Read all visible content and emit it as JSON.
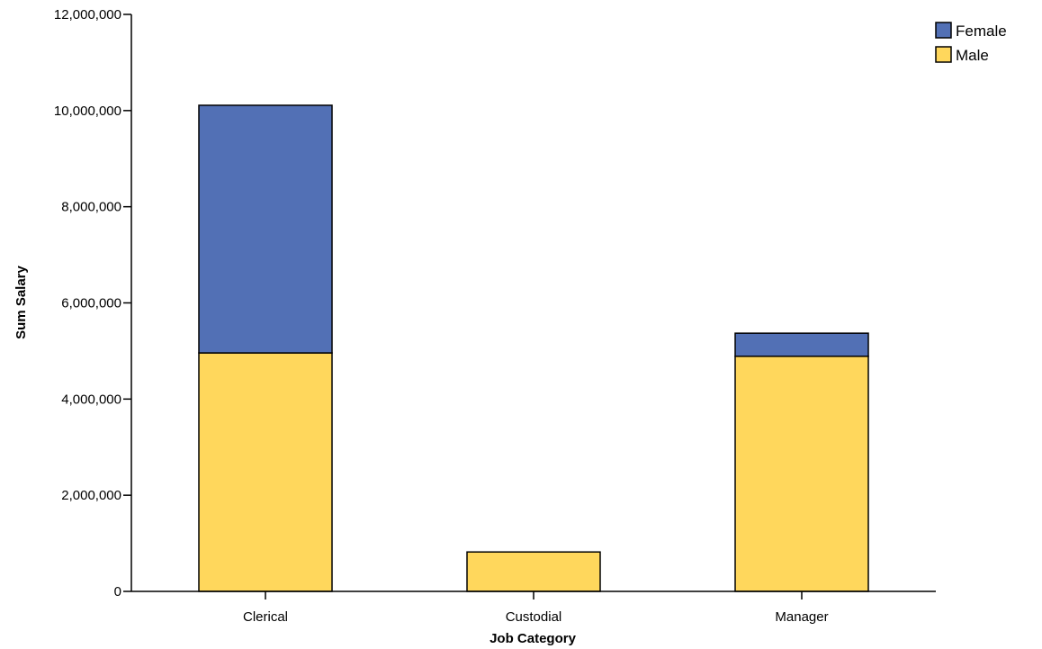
{
  "chart_data": {
    "type": "bar",
    "stacked": true,
    "categories": [
      "Clerical",
      "Custodial",
      "Manager"
    ],
    "series": [
      {
        "name": "Male",
        "values": [
          4960000,
          820000,
          4890000
        ],
        "color": "#FFD75C"
      },
      {
        "name": "Female",
        "values": [
          5150000,
          0,
          480000
        ],
        "color": "#5270B5"
      }
    ],
    "xlabel": "Job Category",
    "ylabel": "Sum Salary",
    "ylim": [
      0,
      12000000
    ],
    "yticks": [
      0,
      2000000,
      4000000,
      6000000,
      8000000,
      10000000,
      12000000
    ],
    "ytick_labels": [
      "0",
      "2,000,000",
      "4,000,000",
      "6,000,000",
      "8,000,000",
      "10,000,000",
      "12,000,000"
    ],
    "legend": {
      "position": "top-right",
      "entries": [
        "Female",
        "Male"
      ]
    },
    "grid": false
  }
}
